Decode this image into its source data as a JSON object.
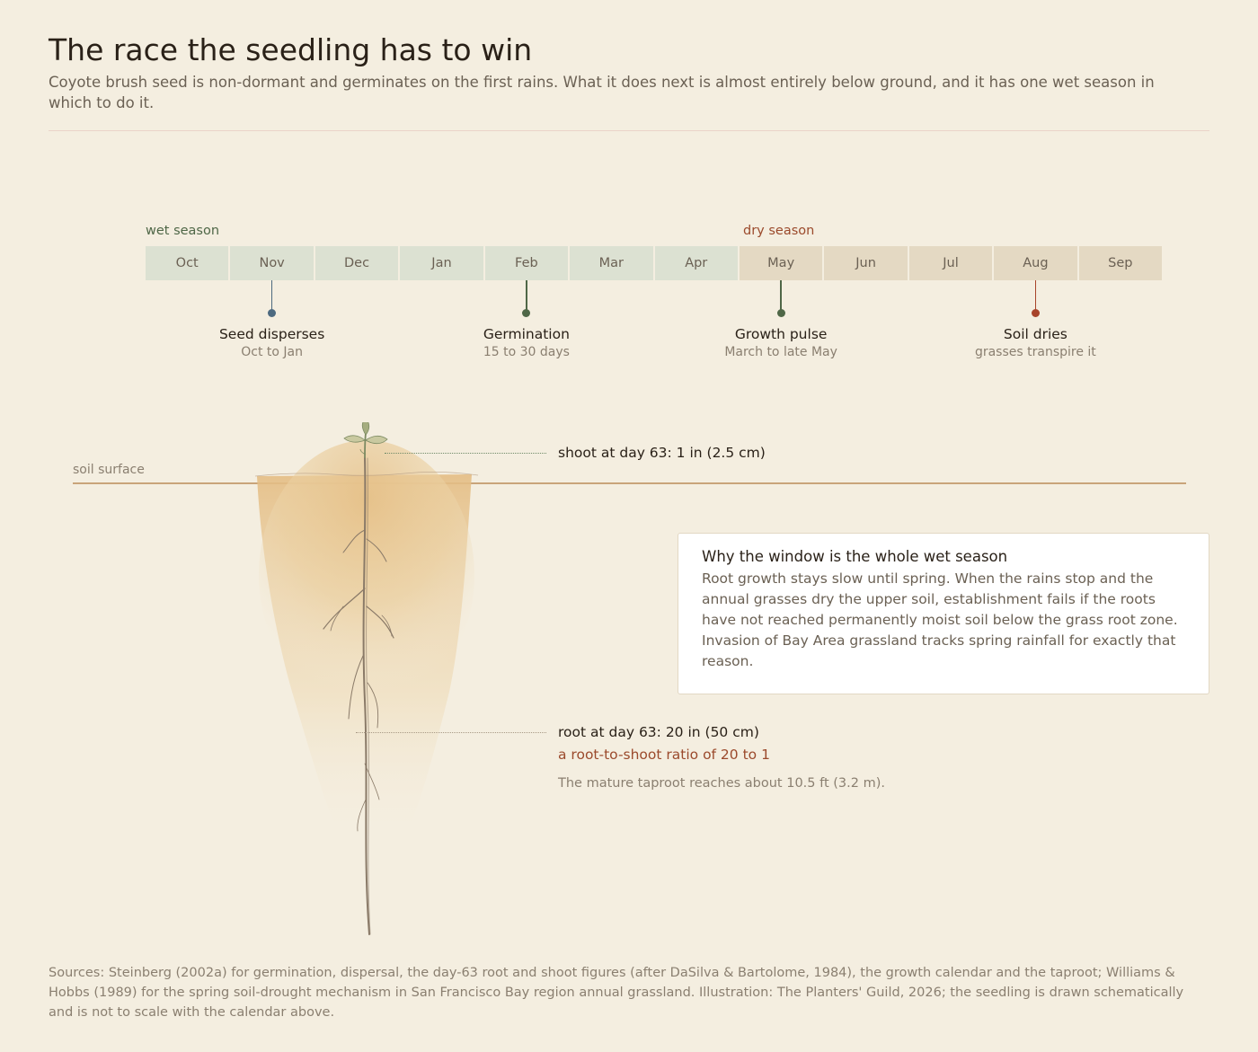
{
  "header": {
    "title": "The race the seedling has to win",
    "subtitle": "Coyote brush seed is non-dormant and germinates on the first rains. What it does next is almost entirely below ground, and it has one wet season in which to do it."
  },
  "calendar": {
    "wet_label": "wet season",
    "dry_label": "dry season",
    "months": [
      {
        "label": "Oct",
        "season": "wet"
      },
      {
        "label": "Nov",
        "season": "wet"
      },
      {
        "label": "Dec",
        "season": "wet"
      },
      {
        "label": "Jan",
        "season": "wet"
      },
      {
        "label": "Feb",
        "season": "wet"
      },
      {
        "label": "Mar",
        "season": "wet"
      },
      {
        "label": "Apr",
        "season": "wet"
      },
      {
        "label": "May",
        "season": "dry"
      },
      {
        "label": "Jun",
        "season": "dry"
      },
      {
        "label": "Jul",
        "season": "dry"
      },
      {
        "label": "Aug",
        "season": "dry"
      },
      {
        "label": "Sep",
        "season": "dry"
      }
    ],
    "events": [
      {
        "month": "Nov",
        "label": "Seed disperses",
        "sub": "Oct to Jan",
        "color": "#4d6a80"
      },
      {
        "month": "Feb",
        "label": "Germination",
        "sub": "15 to 30 days",
        "color": "#4f6747"
      },
      {
        "month": "May",
        "label": "Growth pulse",
        "sub": "March to late May",
        "color": "#4f6747"
      },
      {
        "month": "Aug",
        "label": "Soil dries",
        "sub": "grasses transpire it",
        "color": "#a8442a"
      }
    ]
  },
  "seedling": {
    "soil_label": "soil surface",
    "shoot_note": "shoot at day 63: 1 in (2.5 cm)",
    "root_note": "root at day 63: 20 in (50 cm)",
    "ratio_note": "a root-to-shoot ratio of 20 to 1",
    "taproot_note": "The mature taproot reaches about 10.5 ft (3.2 m)."
  },
  "card": {
    "title": "Why the window is the whole wet season",
    "body": "Root growth stays slow until spring. When the rains stop and the annual grasses dry the upper soil, establishment fails if the roots have not reached permanently moist soil below the grass root zone. Invasion of Bay Area grassland tracks spring rainfall for exactly that reason."
  },
  "sources": "Sources: Steinberg (2002a) for germination, dispersal, the day-63 root and shoot figures (after DaSilva & Bartolome, 1984), the growth calendar and the taproot; Williams & Hobbs (1989) for the spring soil-drought mechanism in San Francisco Bay region annual grassland. Illustration: The Planters' Guild, 2026; the seedling is drawn schematically and is not to scale with the calendar above.",
  "colors": {
    "background": "#f4eee0",
    "wet": "#dce1d2",
    "dry": "#e4d9c3",
    "wet_text": "#4f6747",
    "dry_text": "#9b4a2c"
  }
}
